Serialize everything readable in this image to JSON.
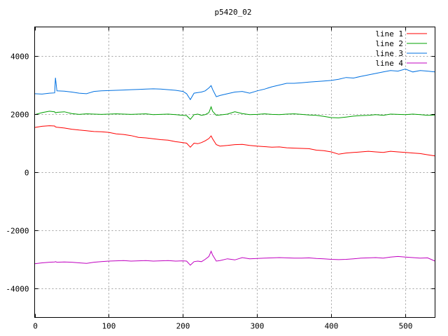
{
  "chart_data": {
    "type": "line",
    "title": "p5420_02",
    "xlabel": "",
    "ylabel": "",
    "xlim": [
      0,
      540
    ],
    "ylim": [
      -5000,
      5000
    ],
    "x_ticks": [
      0,
      100,
      200,
      300,
      400,
      500
    ],
    "y_ticks": [
      -4000,
      -2000,
      0,
      2000,
      4000
    ],
    "grid": true,
    "legend_position": "top-right",
    "x": [
      0,
      10,
      20,
      27,
      28,
      30,
      40,
      50,
      60,
      70,
      80,
      90,
      100,
      110,
      120,
      130,
      140,
      150,
      160,
      170,
      180,
      190,
      200,
      205,
      210,
      215,
      220,
      225,
      230,
      235,
      238,
      240,
      245,
      250,
      260,
      270,
      280,
      290,
      300,
      310,
      320,
      330,
      340,
      350,
      360,
      370,
      380,
      390,
      400,
      410,
      420,
      430,
      440,
      450,
      460,
      470,
      480,
      490,
      500,
      510,
      520,
      530,
      540
    ],
    "series": [
      {
        "name": "line 1",
        "color": "#ff0000",
        "values": [
          1540,
          1580,
          1600,
          1590,
          1560,
          1550,
          1520,
          1480,
          1450,
          1430,
          1400,
          1390,
          1370,
          1320,
          1300,
          1260,
          1200,
          1180,
          1150,
          1120,
          1100,
          1050,
          1020,
          1000,
          860,
          1000,
          980,
          1020,
          1080,
          1160,
          1250,
          1150,
          950,
          900,
          920,
          950,
          960,
          920,
          900,
          880,
          860,
          870,
          840,
          830,
          820,
          810,
          760,
          740,
          700,
          620,
          660,
          680,
          700,
          720,
          700,
          680,
          720,
          700,
          680,
          660,
          640,
          600,
          560
        ]
      },
      {
        "name": "line 2",
        "color": "#00a000",
        "values": [
          1980,
          2050,
          2100,
          2080,
          2040,
          2060,
          2080,
          2020,
          1990,
          2010,
          2000,
          1990,
          2000,
          2010,
          2000,
          1990,
          2000,
          2010,
          1980,
          1990,
          2000,
          1980,
          1960,
          1950,
          1820,
          1980,
          2000,
          1960,
          1980,
          2050,
          2250,
          2100,
          1960,
          1970,
          2000,
          2080,
          2020,
          1980,
          1990,
          2010,
          1990,
          1980,
          2000,
          2010,
          1990,
          1970,
          1960,
          1920,
          1880,
          1870,
          1900,
          1930,
          1950,
          1960,
          1980,
          1960,
          2000,
          1990,
          1980,
          2000,
          1980,
          1960,
          1970
        ]
      },
      {
        "name": "line 3",
        "color": "#0070e0",
        "values": [
          2700,
          2690,
          2720,
          2730,
          3250,
          2800,
          2790,
          2760,
          2720,
          2700,
          2780,
          2800,
          2810,
          2820,
          2830,
          2840,
          2850,
          2860,
          2870,
          2860,
          2840,
          2820,
          2780,
          2700,
          2500,
          2720,
          2740,
          2760,
          2800,
          2900,
          2980,
          2850,
          2600,
          2640,
          2700,
          2760,
          2780,
          2720,
          2800,
          2860,
          2940,
          3000,
          3060,
          3060,
          3080,
          3100,
          3120,
          3140,
          3160,
          3200,
          3260,
          3240,
          3300,
          3350,
          3400,
          3450,
          3500,
          3480,
          3550,
          3450,
          3500,
          3480,
          3450
        ]
      },
      {
        "name": "line 4",
        "color": "#c000c0",
        "values": [
          -3150,
          -3120,
          -3100,
          -3090,
          -3080,
          -3100,
          -3090,
          -3100,
          -3120,
          -3140,
          -3100,
          -3080,
          -3060,
          -3050,
          -3040,
          -3060,
          -3050,
          -3040,
          -3060,
          -3050,
          -3040,
          -3060,
          -3050,
          -3060,
          -3200,
          -3080,
          -3060,
          -3080,
          -3000,
          -2900,
          -2720,
          -2850,
          -3060,
          -3040,
          -2980,
          -3020,
          -2940,
          -2980,
          -2970,
          -2960,
          -2950,
          -2940,
          -2950,
          -2960,
          -2960,
          -2950,
          -2970,
          -2980,
          -3000,
          -3010,
          -3000,
          -2980,
          -2960,
          -2950,
          -2940,
          -2960,
          -2920,
          -2900,
          -2920,
          -2940,
          -2960,
          -2950,
          -3060
        ]
      }
    ]
  }
}
